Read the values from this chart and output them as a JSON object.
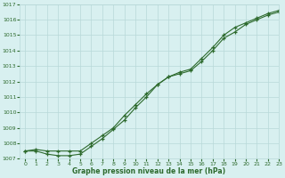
{
  "line1_x": [
    0,
    1,
    2,
    3,
    4,
    5,
    6,
    7,
    8,
    9,
    10,
    11,
    12,
    13,
    14,
    15,
    16,
    17,
    18,
    19,
    20,
    21,
    22,
    23
  ],
  "line1_y": [
    1007.5,
    1007.6,
    1007.5,
    1007.5,
    1007.5,
    1007.5,
    1008.0,
    1008.5,
    1009.0,
    1009.8,
    1010.5,
    1011.2,
    1011.8,
    1012.3,
    1012.6,
    1012.8,
    1013.5,
    1014.2,
    1015.0,
    1015.5,
    1015.8,
    1016.1,
    1016.4,
    1016.6
  ],
  "line2_x": [
    0,
    1,
    2,
    3,
    4,
    5,
    6,
    7,
    8,
    9,
    10,
    11,
    12,
    13,
    14,
    15,
    16,
    17,
    18,
    19,
    20,
    21,
    22,
    23
  ],
  "line2_y": [
    1007.5,
    1007.5,
    1007.3,
    1007.2,
    1007.2,
    1007.3,
    1007.8,
    1008.3,
    1008.9,
    1009.5,
    1010.3,
    1011.0,
    1011.8,
    1012.3,
    1012.5,
    1012.7,
    1013.3,
    1014.0,
    1014.8,
    1015.2,
    1015.7,
    1016.0,
    1016.3,
    1016.5
  ],
  "line_color": "#2d6a2d",
  "bg_color": "#d8f0f0",
  "grid_color": "#b8d8d8",
  "xlabel": "Graphe pression niveau de la mer (hPa)",
  "xlim": [
    -0.5,
    23
  ],
  "ylim": [
    1007,
    1017
  ],
  "yticks": [
    1007,
    1008,
    1009,
    1010,
    1011,
    1012,
    1013,
    1014,
    1015,
    1016,
    1017
  ],
  "xticks": [
    0,
    1,
    2,
    3,
    4,
    5,
    6,
    7,
    8,
    9,
    10,
    11,
    12,
    13,
    14,
    15,
    16,
    17,
    18,
    19,
    20,
    21,
    22,
    23
  ]
}
